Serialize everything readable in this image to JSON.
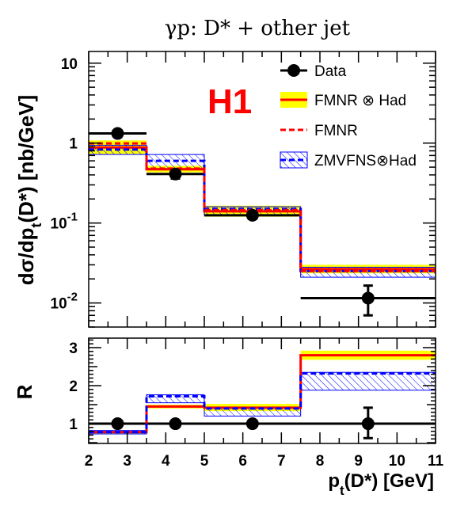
{
  "chart_data": [
    {
      "type": "step-histogram",
      "title": "γp:  D* + other jet",
      "watermark": "H1",
      "ylabel": "dσ/dp_t(D*)  [nb/GeV]",
      "yscale": "log",
      "ylim": [
        0.005,
        14
      ],
      "xlim": [
        2,
        11
      ],
      "bin_edges": [
        2,
        3.5,
        5,
        7.5,
        11
      ],
      "yticks": [
        {
          "value": 10,
          "base": "10",
          "exp": ""
        },
        {
          "value": 1,
          "base": "1",
          "exp": ""
        },
        {
          "value": 0.1,
          "base": "10",
          "exp": "-1"
        },
        {
          "value": 0.01,
          "base": "10",
          "exp": "-2"
        }
      ],
      "legend": {
        "placement": "top-right",
        "entries": [
          "Data",
          "FMNR ⊗ Had",
          "FMNR",
          "ZMVFNS⊗Had"
        ]
      },
      "series": [
        {
          "name": "Data",
          "x": [
            2.75,
            4.25,
            6.25,
            9.25
          ],
          "y": [
            1.32,
            0.41,
            0.125,
            0.0115
          ],
          "yerr_low": [
            0.12,
            0.05,
            0.012,
            0.0045
          ],
          "yerr_high": [
            0.12,
            0.05,
            0.012,
            0.005
          ],
          "color": "#000000"
        },
        {
          "name": "FMNR ⊗ Had",
          "values": [
            0.88,
            0.47,
            0.14,
            0.0265
          ],
          "band_low": [
            0.73,
            0.43,
            0.12,
            0.0235
          ],
          "band_high": [
            1.08,
            0.52,
            0.165,
            0.03
          ],
          "color": "#ff0000",
          "band_color": "#ffff00"
        },
        {
          "name": "FMNR",
          "values": [
            0.99,
            0.48,
            0.145,
            0.025
          ],
          "color": "#ff0000"
        },
        {
          "name": "ZMVFNS⊗Had",
          "values": [
            0.83,
            0.6,
            0.15,
            0.025
          ],
          "band_low": [
            0.72,
            0.48,
            0.125,
            0.021
          ],
          "band_high": [
            0.94,
            0.72,
            0.16,
            0.028
          ],
          "color": "#0000ff"
        }
      ]
    },
    {
      "type": "step-histogram",
      "ylabel": "R",
      "xlabel": "p_t(D*) [GeV]",
      "ylim": [
        0.48,
        3.25
      ],
      "xlim": [
        2,
        11
      ],
      "bin_edges": [
        2,
        3.5,
        5,
        7.5,
        11
      ],
      "yticks": [
        1,
        2,
        3
      ],
      "xticks": [
        2,
        3,
        4,
        5,
        6,
        7,
        8,
        9,
        10,
        11
      ],
      "series": [
        {
          "name": "Data",
          "x": [
            2.75,
            4.25,
            6.25,
            9.25
          ],
          "y": [
            1,
            1,
            1,
            1
          ],
          "yerr_low": [
            0,
            0,
            0,
            0.38
          ],
          "yerr_high": [
            0,
            0,
            0,
            0.42
          ],
          "color": "#000000"
        },
        {
          "name": "FMNR ⊗ Had",
          "values": [
            0.78,
            1.45,
            1.42,
            2.8
          ],
          "band_low": [
            0.74,
            1.4,
            1.33,
            2.68
          ],
          "band_high": [
            0.81,
            1.5,
            1.52,
            2.92
          ],
          "color": "#ff0000",
          "band_color": "#ffff00"
        },
        {
          "name": "ZMVFNS⊗Had",
          "values": [
            0.78,
            1.72,
            1.4,
            2.32
          ],
          "band_low": [
            0.73,
            1.55,
            1.2,
            1.88
          ],
          "band_high": [
            0.82,
            1.76,
            1.43,
            2.35
          ],
          "color": "#0000ff"
        }
      ]
    }
  ]
}
